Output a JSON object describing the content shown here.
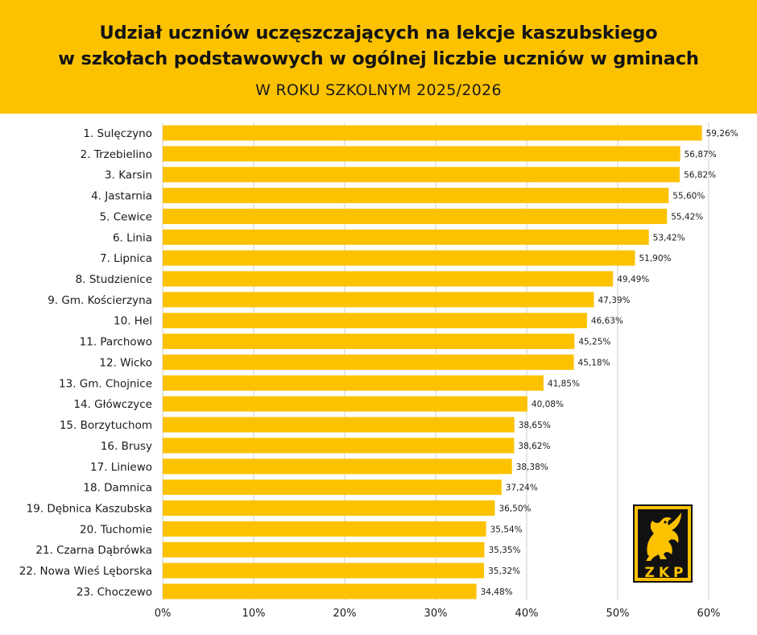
{
  "header": {
    "title_line1": "Udział uczniów uczęszczających na lekcje kaszubskiego",
    "title_line2": "w szkołach podstawowych w ogólnej liczbie uczniów w gminach",
    "subtitle": "W ROKU SZKOLNYM 2025/2026"
  },
  "logo": {
    "text": "ZKP"
  },
  "colors": {
    "accent": "#fcc200",
    "bar": "#fcc200",
    "text": "#141414",
    "grid": "#cfcfcf"
  },
  "chart_data": {
    "type": "bar",
    "orientation": "horizontal",
    "title": "Udział uczniów uczęszczających na lekcje kaszubskiego w szkołach podstawowych w ogólnej liczbie uczniów w gminach",
    "subtitle": "W ROKU SZKOLNYM 2025/2026",
    "xlabel": "",
    "ylabel": "",
    "xlim": [
      0,
      60
    ],
    "xticks": [
      0,
      10,
      20,
      30,
      40,
      50,
      60
    ],
    "xtick_labels": [
      "0%",
      "10%",
      "20%",
      "30%",
      "40%",
      "50%",
      "60%"
    ],
    "grid": "vertical",
    "categories": [
      "1. Sulęczyno",
      "2. Trzebielino",
      "3. Karsin",
      "4. Jastarnia",
      "5. Cewice",
      "6. Linia",
      "7. Lipnica",
      "8. Studzienice",
      "9. Gm. Kościerzyna",
      "10. Hel",
      "11. Parchowo",
      "12. Wicko",
      "13. Gm. Chojnice",
      "14. Główczyce",
      "15. Borzytuchom",
      "16. Brusy",
      "17. Liniewo",
      "18. Damnica",
      "19. Dębnica Kaszubska",
      "20. Tuchomie",
      "21. Czarna Dąbrówka",
      "22. Nowa Wieś Lęborska",
      "23. Choczewo"
    ],
    "values": [
      59.26,
      56.87,
      56.82,
      55.6,
      55.42,
      53.42,
      51.9,
      49.49,
      47.39,
      46.63,
      45.25,
      45.18,
      41.85,
      40.08,
      38.65,
      38.62,
      38.38,
      37.24,
      36.5,
      35.54,
      35.35,
      35.32,
      34.48
    ],
    "value_labels": [
      "59,26%",
      "56,87%",
      "56,82%",
      "55,60%",
      "55,42%",
      "53,42%",
      "51,90%",
      "49,49%",
      "47,39%",
      "46,63%",
      "45,25%",
      "45,18%",
      "41,85%",
      "40,08%",
      "38,65%",
      "38,62%",
      "38,38%",
      "37,24%",
      "36,50%",
      "35,54%",
      "35,35%",
      "35,32%",
      "34,48%"
    ]
  }
}
